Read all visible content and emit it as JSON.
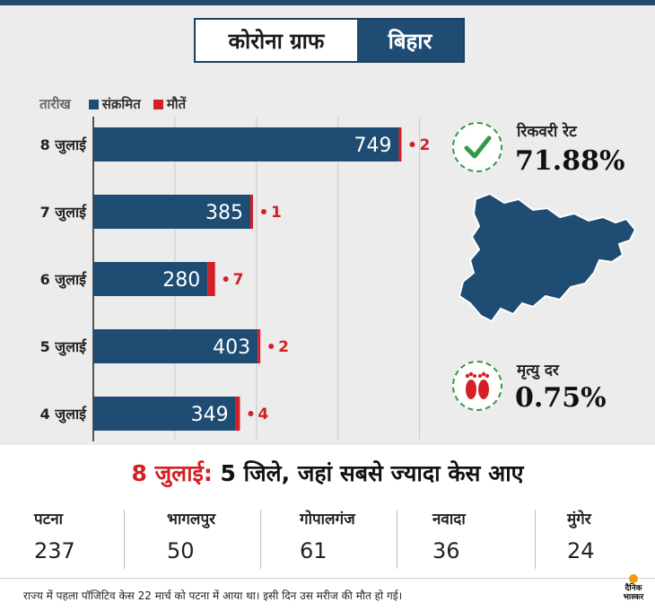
{
  "header": {
    "title": "कोरोना ग्राफ",
    "state": "बिहार"
  },
  "legend": {
    "date_label": "तारीख",
    "infected_label": "संक्रमित",
    "deaths_label": "मौतें"
  },
  "colors": {
    "infected": "#1f4c72",
    "deaths": "#d32027",
    "header_bg": "#1f4c72",
    "accent_green": "#2e9b47"
  },
  "chart_data": {
    "type": "bar",
    "orientation": "horizontal",
    "categories": [
      "8 जुलाई",
      "7 जुलाई",
      "6 जुलाई",
      "5 जुलाई",
      "4 जुलाई"
    ],
    "series": [
      {
        "name": "संक्रमित",
        "values": [
          749,
          385,
          280,
          403,
          349
        ]
      },
      {
        "name": "मौतें",
        "values": [
          2,
          1,
          7,
          2,
          4
        ]
      }
    ],
    "xlabel": "",
    "ylabel": "तारीख",
    "xlim": [
      0,
      880
    ],
    "grid": true,
    "legend": "top-left"
  },
  "stats": {
    "recovery_label": "रिकवरी रेट",
    "recovery_value": "71.88%",
    "recovery_icon": "check-icon",
    "death_rate_label": "मृत्यु दर",
    "death_rate_value": "0.75%",
    "death_icon": "footprints-icon",
    "map_icon": "bihar-map-icon"
  },
  "districts_title": {
    "date": "8 जुलाई:",
    "rest": " 5 जिले, जहां सबसे ज्यादा केस आए"
  },
  "districts": [
    {
      "name": "पटना",
      "value": "237"
    },
    {
      "name": "भागलपुर",
      "value": "50"
    },
    {
      "name": "गोपालगंज",
      "value": "61"
    },
    {
      "name": "नवादा",
      "value": "36"
    },
    {
      "name": "मुंगेर",
      "value": "24"
    }
  ],
  "footer": {
    "note": "राज्य में पहला पॉजिटिव केस 22 मार्च को पटना में आया था। इसी दिन उस मरीज की मौत हो गई।"
  },
  "logo": {
    "line1": "दैनिक",
    "line2": "भास्कर"
  }
}
